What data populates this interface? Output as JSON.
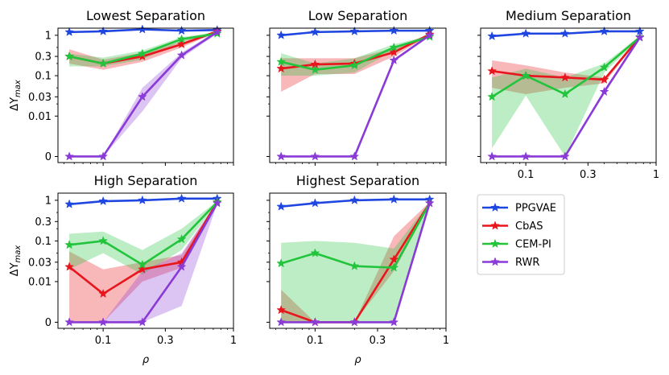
{
  "chart_data": {
    "type": "line",
    "xscale": "log",
    "yscale": "symlog",
    "x": [
      0.055,
      0.1,
      0.2,
      0.4,
      0.75
    ],
    "xlim": [
      0.045,
      1.0
    ],
    "ylim": [
      -0.0015,
      1.5
    ],
    "x_ticks": [
      {
        "value": 0.1,
        "label": "0.1"
      },
      {
        "value": 0.3,
        "label": "0.3"
      },
      {
        "value": 1.0,
        "label": "1"
      }
    ],
    "y_ticks": [
      {
        "value": 0,
        "label": "0"
      },
      {
        "value": 0.01,
        "label": "0.01"
      },
      {
        "value": 0.03,
        "label": "0.03"
      },
      {
        "value": 0.1,
        "label": "0.1"
      },
      {
        "value": 0.3,
        "label": "0.3"
      },
      {
        "value": 1.0,
        "label": "1"
      }
    ],
    "xlabel": "ρ",
    "ylabel": "ΔY",
    "ylabel_sub": "max",
    "legend": {
      "placement": "empty bottom-right panel",
      "entries": [
        {
          "name": "PPGVAE",
          "color": "#1f46e0"
        },
        {
          "name": "CbAS",
          "color": "#e8151c"
        },
        {
          "name": "CEM-PI",
          "color": "#22c43c"
        },
        {
          "name": "RWR",
          "color": "#8a3ad6"
        }
      ]
    },
    "panels": [
      {
        "title": "Lowest Separation",
        "series": [
          {
            "name": "PPGVAE",
            "values": [
              1.2,
              1.25,
              1.4,
              1.3,
              1.35
            ]
          },
          {
            "name": "CbAS",
            "values": [
              0.3,
              0.2,
              0.3,
              0.6,
              1.25
            ],
            "lo": [
              0.2,
              0.14,
              0.22,
              0.5,
              1.2
            ],
            "hi": [
              0.45,
              0.25,
              0.37,
              0.7,
              1.3
            ]
          },
          {
            "name": "CEM-PI",
            "values": [
              0.3,
              0.2,
              0.35,
              0.8,
              1.1
            ],
            "lo": [
              0.17,
              0.17,
              0.25,
              0.7,
              1.0
            ],
            "hi": [
              0.35,
              0.28,
              0.42,
              0.9,
              1.2
            ]
          },
          {
            "name": "RWR",
            "values": [
              0,
              0,
              0.03,
              0.32,
              1.2
            ],
            "lo": [
              0,
              0,
              0.013,
              0.27,
              1.1
            ],
            "hi": [
              0,
              0,
              0.05,
              0.37,
              1.3
            ]
          }
        ]
      },
      {
        "title": "Low Separation",
        "series": [
          {
            "name": "PPGVAE",
            "values": [
              1.0,
              1.2,
              1.25,
              1.3,
              1.3
            ]
          },
          {
            "name": "CbAS",
            "values": [
              0.15,
              0.19,
              0.2,
              0.38,
              1.05
            ],
            "lo": [
              0.04,
              0.11,
              0.11,
              0.3,
              1.0
            ],
            "hi": [
              0.27,
              0.27,
              0.27,
              0.48,
              1.1
            ]
          },
          {
            "name": "CEM-PI",
            "values": [
              0.22,
              0.14,
              0.18,
              0.5,
              0.92
            ],
            "lo": [
              0.1,
              0.1,
              0.12,
              0.42,
              0.88
            ],
            "hi": [
              0.36,
              0.2,
              0.27,
              0.6,
              0.97
            ]
          },
          {
            "name": "RWR",
            "values": [
              0,
              0,
              0,
              0.24,
              1.0
            ]
          }
        ]
      },
      {
        "title": "Medium Separation",
        "series": [
          {
            "name": "PPGVAE",
            "values": [
              0.95,
              1.1,
              1.1,
              1.25,
              1.25
            ]
          },
          {
            "name": "CbAS",
            "values": [
              0.13,
              0.1,
              0.09,
              0.08,
              0.9
            ],
            "lo": [
              0.05,
              0.035,
              0.05,
              0.065,
              0.88
            ],
            "hi": [
              0.24,
              0.18,
              0.12,
              0.09,
              0.93
            ]
          },
          {
            "name": "CEM-PI",
            "values": [
              0.03,
              0.1,
              0.035,
              0.16,
              0.9
            ],
            "lo": [
              0.002,
              0.032,
              0.0,
              0.12,
              0.85
            ],
            "hi": [
              0.09,
              0.15,
              0.09,
              0.2,
              0.95
            ]
          },
          {
            "name": "RWR",
            "values": [
              0,
              0,
              0,
              0.04,
              0.88
            ],
            "lo": [
              0,
              0,
              0,
              0.035,
              0.85
            ],
            "hi": [
              0,
              0,
              0,
              0.046,
              0.92
            ]
          }
        ]
      },
      {
        "title": "High Separation",
        "series": [
          {
            "name": "PPGVAE",
            "values": [
              0.8,
              0.95,
              1.0,
              1.1,
              1.1
            ]
          },
          {
            "name": "CbAS",
            "values": [
              0.023,
              0.007,
              0.02,
              0.03,
              0.9
            ],
            "lo": [
              0.0,
              0.0,
              0.01,
              0.022,
              0.85
            ],
            "hi": [
              0.055,
              0.02,
              0.03,
              0.045,
              0.95
            ]
          },
          {
            "name": "CEM-PI",
            "values": [
              0.08,
              0.1,
              0.026,
              0.11,
              0.9
            ],
            "lo": [
              0.02,
              0.05,
              0.015,
              0.06,
              0.85
            ],
            "hi": [
              0.15,
              0.17,
              0.06,
              0.2,
              0.95
            ]
          },
          {
            "name": "RWR",
            "values": [
              0,
              0,
              0,
              0.023,
              0.85
            ],
            "lo": [
              0,
              0,
              0,
              0.004,
              0.8
            ],
            "hi": [
              0,
              0,
              0.018,
              0.05,
              0.9
            ]
          }
        ]
      },
      {
        "title": "Highest Separation",
        "series": [
          {
            "name": "PPGVAE",
            "values": [
              0.7,
              0.85,
              1.0,
              1.05,
              1.05
            ]
          },
          {
            "name": "CbAS",
            "values": [
              0.003,
              0.0,
              0.0,
              0.035,
              0.85
            ],
            "lo": [
              0.0,
              0.0,
              0.0,
              0.018,
              0.8
            ],
            "hi": [
              0.008,
              0.0,
              0.0,
              0.13,
              0.9
            ]
          },
          {
            "name": "CEM-PI",
            "values": [
              0.028,
              0.05,
              0.024,
              0.022,
              0.85
            ],
            "lo": [
              0.0,
              0.0,
              0.0,
              0.0,
              0.8
            ],
            "hi": [
              0.09,
              0.1,
              0.09,
              0.065,
              0.9
            ]
          },
          {
            "name": "RWR",
            "values": [
              0,
              0,
              0,
              0,
              0.85
            ]
          }
        ]
      }
    ]
  }
}
